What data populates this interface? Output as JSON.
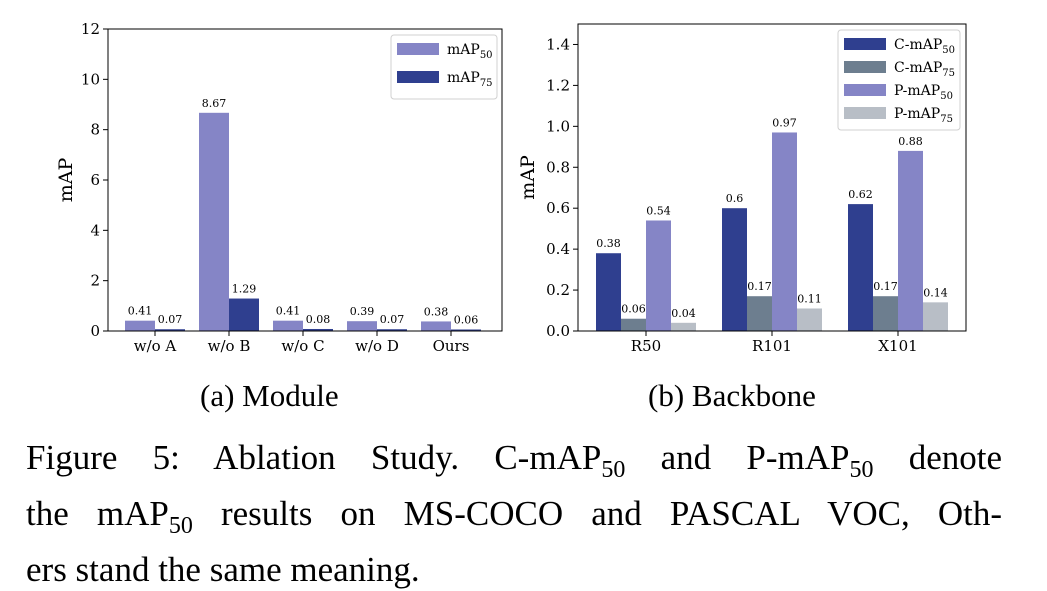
{
  "chart_data": [
    {
      "type": "bar",
      "subcaption": "(a) Module",
      "ylabel": "mAP",
      "ylim": [
        0,
        12
      ],
      "yticks": [
        "0",
        "2",
        "4",
        "6",
        "8",
        "10",
        "12"
      ],
      "categories": [
        "w/o A",
        "w/o B",
        "w/o C",
        "w/o D",
        "Ours"
      ],
      "series": [
        {
          "name": "mAP",
          "sub": "50",
          "color": "#8585c6",
          "values": [
            0.41,
            8.67,
            0.41,
            0.39,
            0.38
          ],
          "labels": [
            "0.41",
            "8.67",
            "0.41",
            "0.39",
            "0.38"
          ]
        },
        {
          "name": "mAP",
          "sub": "75",
          "color": "#2f3f8f",
          "values": [
            0.07,
            1.29,
            0.08,
            0.07,
            0.06
          ],
          "labels": [
            "0.07",
            "1.29",
            "0.08",
            "0.07",
            "0.06"
          ]
        }
      ],
      "legend": "top-right",
      "grid": false
    },
    {
      "type": "bar",
      "subcaption": "(b) Backbone",
      "ylabel": "mAP",
      "ylim": [
        0,
        1.5
      ],
      "yticks": [
        "0.0",
        "0.2",
        "0.4",
        "0.6",
        "0.8",
        "1.0",
        "1.2",
        "1.4"
      ],
      "categories": [
        "R50",
        "R101",
        "X101"
      ],
      "series": [
        {
          "name": "C-mAP",
          "sub": "50",
          "color": "#2f3f8f",
          "values": [
            0.38,
            0.6,
            0.62
          ],
          "labels": [
            "0.38",
            "0.6",
            "0.62"
          ]
        },
        {
          "name": "C-mAP",
          "sub": "75",
          "color": "#6d7e8f",
          "values": [
            0.06,
            0.17,
            0.17
          ],
          "labels": [
            "0.06",
            "0.17",
            "0.17"
          ]
        },
        {
          "name": "P-mAP",
          "sub": "50",
          "color": "#8585c6",
          "values": [
            0.54,
            0.97,
            0.88
          ],
          "labels": [
            "0.54",
            "0.97",
            "0.88"
          ]
        },
        {
          "name": "P-mAP",
          "sub": "75",
          "color": "#b8bec6",
          "values": [
            0.04,
            0.11,
            0.14
          ],
          "labels": [
            "0.04",
            "0.11",
            "0.14"
          ]
        }
      ],
      "legend": "top-right",
      "grid": false
    }
  ],
  "caption": {
    "line1_a": "Figure 5: Ablation Study. C-mAP",
    "line1_sub1": "50",
    "line1_b": " and P-mAP",
    "line1_sub2": "50",
    "line1_c": " denote",
    "line2_a": "the mAP",
    "line2_sub": "50",
    "line2_b": " results on MS-COCO and PASCAL VOC, Oth-",
    "line3": "ers stand the same meaning."
  }
}
